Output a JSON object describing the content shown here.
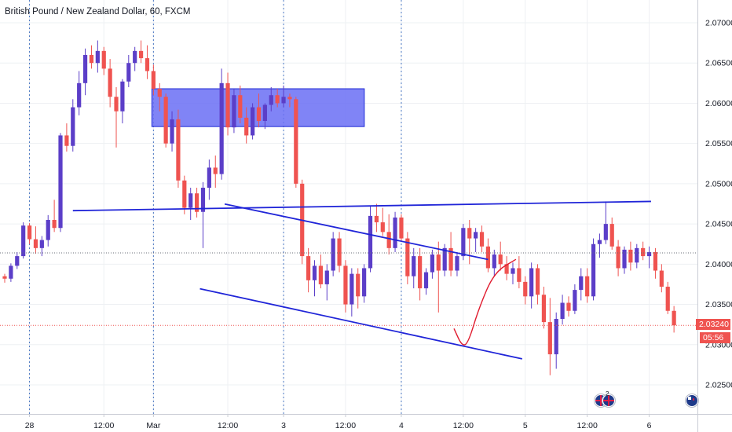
{
  "header": {
    "title": "British Pound / New Zealand Dollar, 60, FXCM"
  },
  "price_badge": {
    "value": "2.03240",
    "timer": "05:56",
    "color": "#ef5350"
  },
  "events": {
    "count": "2"
  },
  "colors": {
    "up": "#5b3ec8",
    "down": "#ef5350",
    "zone_fill": "#6a6ff5",
    "zone_stroke": "#1f2bd6",
    "trendline": "#2025d8",
    "annotation": "#e01b2e",
    "session_line": "#4a78c4",
    "grid": "#eef0f3"
  },
  "chart_data": {
    "type": "candlestick",
    "title": "British Pound / New Zealand Dollar, 60, FXCM",
    "y_ticks": [
      "2.07000",
      "2.06500",
      "2.06000",
      "2.05500",
      "2.05000",
      "2.04500",
      "2.04000",
      "2.03500",
      "2.03000",
      "2.02500"
    ],
    "ylim": [
      2.0215,
      2.0715
    ],
    "x_ticks": [
      "28",
      "12:00",
      "Mar",
      "12:00",
      "3",
      "12:00",
      "4",
      "12:00",
      "5",
      "12:00",
      "6"
    ],
    "x_tick_bar_index": [
      4,
      16,
      24,
      36,
      45,
      55,
      64,
      74,
      84,
      94,
      104
    ],
    "session_starts": [
      "28",
      "Mar",
      "3",
      "4"
    ],
    "current_price": 2.0324,
    "last_bar_close_dotted": 2.0414,
    "candles": [
      [
        2.0385,
        2.0388,
        2.0377,
        2.0382
      ],
      [
        2.0382,
        2.0401,
        2.0378,
        2.0398
      ],
      [
        2.0398,
        2.0415,
        2.0394,
        2.041
      ],
      [
        2.041,
        2.0452,
        2.0407,
        2.0448
      ],
      [
        2.0448,
        2.0451,
        2.0425,
        2.0431
      ],
      [
        2.0431,
        2.0447,
        2.0413,
        2.042
      ],
      [
        2.042,
        2.0435,
        2.041,
        2.043
      ],
      [
        2.043,
        2.0461,
        2.0422,
        2.0455
      ],
      [
        2.0455,
        2.048,
        2.044,
        2.0445
      ],
      [
        2.0445,
        2.0563,
        2.044,
        2.056
      ],
      [
        2.056,
        2.0575,
        2.054,
        2.0547
      ],
      [
        2.0547,
        2.0605,
        2.054,
        2.0595
      ],
      [
        2.0595,
        2.064,
        2.0585,
        2.0625
      ],
      [
        2.0625,
        2.0668,
        2.061,
        2.066
      ],
      [
        2.066,
        2.0672,
        2.0643,
        2.065
      ],
      [
        2.065,
        2.0678,
        2.0638,
        2.0665
      ],
      [
        2.0665,
        2.067,
        2.0635,
        2.0643
      ],
      [
        2.0643,
        2.0655,
        2.0595,
        2.0608
      ],
      [
        2.0608,
        2.062,
        2.0545,
        2.059
      ],
      [
        2.059,
        2.063,
        2.0575,
        2.0627
      ],
      [
        2.0627,
        2.066,
        2.062,
        2.065
      ],
      [
        2.065,
        2.067,
        2.064,
        2.0665
      ],
      [
        2.0665,
        2.0678,
        2.065,
        2.0656
      ],
      [
        2.0656,
        2.0672,
        2.063,
        2.064
      ],
      [
        2.064,
        2.0648,
        2.061,
        2.0618
      ],
      [
        2.0618,
        2.0625,
        2.059,
        2.0608
      ],
      [
        2.0608,
        2.0612,
        2.0545,
        2.055
      ],
      [
        2.055,
        2.059,
        2.054,
        2.058
      ],
      [
        2.058,
        2.0592,
        2.0495,
        2.0504
      ],
      [
        2.0504,
        2.051,
        2.0462,
        2.047
      ],
      [
        2.047,
        2.0495,
        2.0455,
        2.0488
      ],
      [
        2.0488,
        2.0495,
        2.0458,
        2.0465
      ],
      [
        2.0465,
        2.0502,
        2.042,
        2.0495
      ],
      [
        2.0495,
        2.053,
        2.048,
        2.052
      ],
      [
        2.052,
        2.0535,
        2.0495,
        2.0512
      ],
      [
        2.0512,
        2.0643,
        2.0505,
        2.0625
      ],
      [
        2.0625,
        2.0638,
        2.056,
        2.057
      ],
      [
        2.057,
        2.0618,
        2.0563,
        2.061
      ],
      [
        2.061,
        2.0622,
        2.0575,
        2.0582
      ],
      [
        2.0582,
        2.0595,
        2.055,
        2.056
      ],
      [
        2.056,
        2.06,
        2.0555,
        2.0595
      ],
      [
        2.0595,
        2.0612,
        2.057,
        2.0578
      ],
      [
        2.0578,
        2.06,
        2.0568,
        2.0598
      ],
      [
        2.0598,
        2.062,
        2.059,
        2.061
      ],
      [
        2.061,
        2.0618,
        2.0595,
        2.06
      ],
      [
        2.06,
        2.0622,
        2.0595,
        2.0608
      ],
      [
        2.0608,
        2.0612,
        2.0595,
        2.0605
      ],
      [
        2.0605,
        2.0608,
        2.0495,
        2.05
      ],
      [
        2.05,
        2.0505,
        2.04,
        2.041
      ],
      [
        2.041,
        2.042,
        2.0365,
        2.038
      ],
      [
        2.038,
        2.0405,
        2.036,
        2.0398
      ],
      [
        2.0398,
        2.0412,
        2.037,
        2.0375
      ],
      [
        2.0375,
        2.04,
        2.0355,
        2.0392
      ],
      [
        2.0392,
        2.044,
        2.0385,
        2.0432
      ],
      [
        2.0432,
        2.044,
        2.039,
        2.0398
      ],
      [
        2.0398,
        2.0405,
        2.034,
        2.035
      ],
      [
        2.035,
        2.0395,
        2.0335,
        2.0388
      ],
      [
        2.0388,
        2.0395,
        2.0345,
        2.036
      ],
      [
        2.036,
        2.04,
        2.0352,
        2.0395
      ],
      [
        2.0395,
        2.0472,
        2.039,
        2.046
      ],
      [
        2.046,
        2.0475,
        2.044,
        2.0452
      ],
      [
        2.0452,
        2.047,
        2.0435,
        2.044
      ],
      [
        2.044,
        2.0462,
        2.0412,
        2.042
      ],
      [
        2.042,
        2.0465,
        2.0415,
        2.0458
      ],
      [
        2.0458,
        2.0462,
        2.0428,
        2.0432
      ],
      [
        2.0432,
        2.044,
        2.0375,
        2.0385
      ],
      [
        2.0385,
        2.042,
        2.037,
        2.041
      ],
      [
        2.041,
        2.042,
        2.0355,
        2.037
      ],
      [
        2.037,
        2.0395,
        2.0362,
        2.039
      ],
      [
        2.039,
        2.0418,
        2.0382,
        2.0412
      ],
      [
        2.0412,
        2.0428,
        2.034,
        2.0392
      ],
      [
        2.0392,
        2.0425,
        2.0385,
        2.042
      ],
      [
        2.042,
        2.044,
        2.0385,
        2.0392
      ],
      [
        2.0392,
        2.0415,
        2.0385,
        2.041
      ],
      [
        2.041,
        2.045,
        2.0405,
        2.0445
      ],
      [
        2.0445,
        2.0455,
        2.04,
        2.0432
      ],
      [
        2.0432,
        2.0445,
        2.0415,
        2.044
      ],
      [
        2.044,
        2.0448,
        2.0415,
        2.0422
      ],
      [
        2.0422,
        2.0432,
        2.039,
        2.0395
      ],
      [
        2.0395,
        2.0418,
        2.0385,
        2.0412
      ],
      [
        2.0412,
        2.0428,
        2.0392,
        2.04
      ],
      [
        2.04,
        2.041,
        2.038,
        2.0388
      ],
      [
        2.0388,
        2.0402,
        2.0375,
        2.0395
      ],
      [
        2.0395,
        2.041,
        2.037,
        2.0378
      ],
      [
        2.0378,
        2.0385,
        2.035,
        2.036
      ],
      [
        2.036,
        2.0402,
        2.0345,
        2.0395
      ],
      [
        2.0395,
        2.04,
        2.035,
        2.0362
      ],
      [
        2.0362,
        2.0372,
        2.032,
        2.0328
      ],
      [
        2.0328,
        2.0358,
        2.0262,
        2.0288
      ],
      [
        2.0288,
        2.034,
        2.027,
        2.0332
      ],
      [
        2.0332,
        2.0362,
        2.0325,
        2.0352
      ],
      [
        2.0352,
        2.036,
        2.0335,
        2.0342
      ],
      [
        2.0342,
        2.0375,
        2.0338,
        2.0368
      ],
      [
        2.0368,
        2.0395,
        2.0355,
        2.0385
      ],
      [
        2.0385,
        2.0395,
        2.0352,
        2.036
      ],
      [
        2.036,
        2.0432,
        2.0355,
        2.0425
      ],
      [
        2.0425,
        2.0438,
        2.0408,
        2.043
      ],
      [
        2.043,
        2.0478,
        2.0425,
        2.045
      ],
      [
        2.045,
        2.0458,
        2.0418,
        2.0422
      ],
      [
        2.0422,
        2.043,
        2.0385,
        2.0395
      ],
      [
        2.0395,
        2.0422,
        2.0388,
        2.0418
      ],
      [
        2.0418,
        2.0428,
        2.0392,
        2.0402
      ],
      [
        2.0402,
        2.0425,
        2.0395,
        2.042
      ],
      [
        2.042,
        2.0428,
        2.0405,
        2.041
      ],
      [
        2.041,
        2.0422,
        2.0395,
        2.0415
      ],
      [
        2.0415,
        2.042,
        2.0382,
        2.0392
      ],
      [
        2.0392,
        2.04,
        2.0365,
        2.0372
      ],
      [
        2.0372,
        2.0378,
        2.0338,
        2.0342
      ],
      [
        2.0342,
        2.0348,
        2.0315,
        2.0324
      ]
    ],
    "zone": {
      "from_bar": 24,
      "to_bar": 56,
      "top": 2.0618,
      "bottom": 2.0571
    },
    "trendlines": [
      {
        "name": "horizontal-resistance",
        "from": [
          11,
          2.04665
        ],
        "to": [
          104.3,
          2.0478
        ]
      },
      {
        "name": "channel-upper",
        "from": [
          35.5,
          2.04748
        ],
        "to": [
          78,
          2.04058
        ]
      },
      {
        "name": "channel-lower",
        "from": [
          31.5,
          2.03695
        ],
        "to": [
          83.5,
          2.02823
        ]
      }
    ],
    "annotation_curve": [
      [
        72.5,
        2.032
      ],
      [
        73.8,
        2.0298
      ],
      [
        74.8,
        2.0302
      ],
      [
        76.5,
        2.0345
      ],
      [
        79,
        2.039
      ],
      [
        82.5,
        2.0406
      ]
    ],
    "grid": true,
    "legend": "none"
  }
}
